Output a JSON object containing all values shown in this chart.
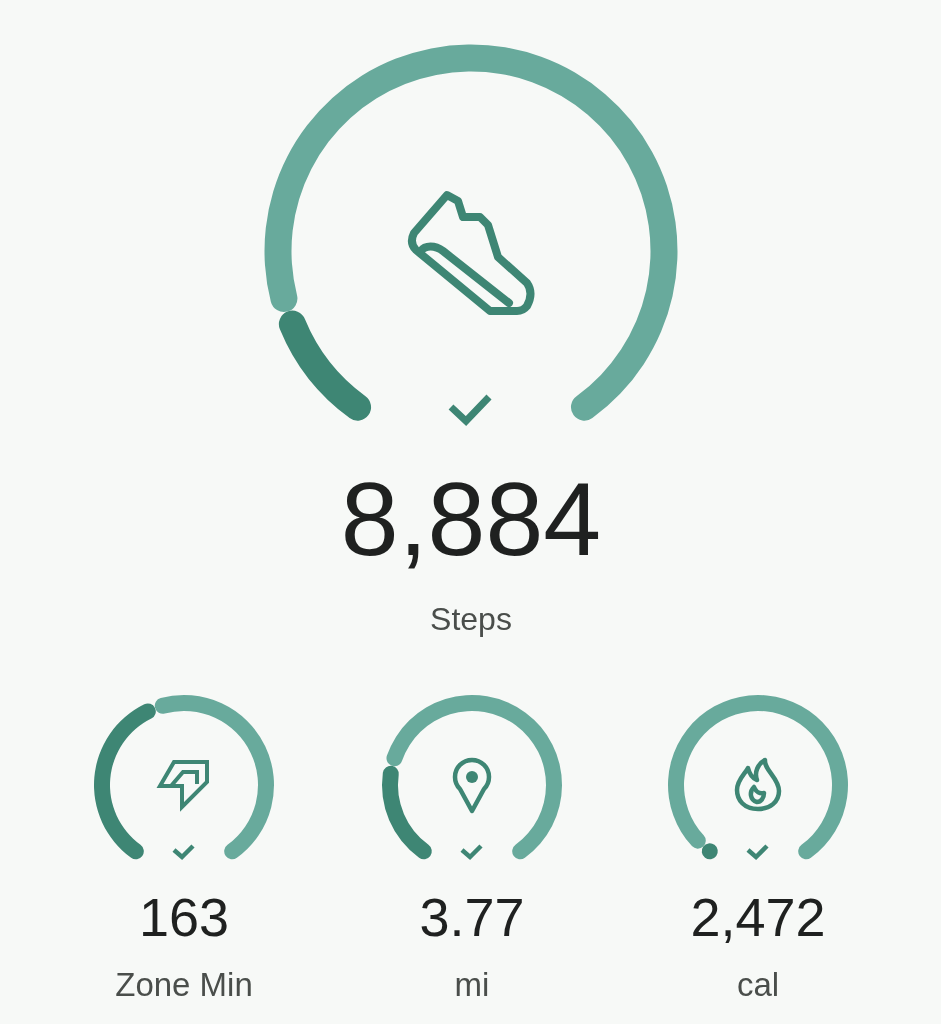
{
  "chart_data": [
    {
      "type": "donut",
      "categories": [
        null,
        null
      ],
      "values": [
        13,
        87
      ],
      "colors": [
        "#3e8674",
        "#68aa9c"
      ],
      "annotations": [
        "8,884"
      ],
      "title": "Steps"
    },
    {
      "type": "donut",
      "categories": [
        null,
        null
      ],
      "values": [
        43,
        57
      ],
      "colors": [
        "#3e8674",
        "#68aa9c"
      ],
      "annotations": [
        "163"
      ],
      "title": "Zone Min"
    },
    {
      "type": "donut",
      "categories": [
        null,
        null
      ],
      "values": [
        24,
        76
      ],
      "colors": [
        "#3e8674",
        "#68aa9c"
      ],
      "annotations": [
        "3.77"
      ],
      "title": "mi"
    },
    {
      "type": "donut",
      "categories": [
        null,
        null
      ],
      "values": [
        3,
        97
      ],
      "colors": [
        "#3e8674",
        "#68aa9c"
      ],
      "annotations": [
        "2,472"
      ],
      "title": "cal"
    }
  ]
}
